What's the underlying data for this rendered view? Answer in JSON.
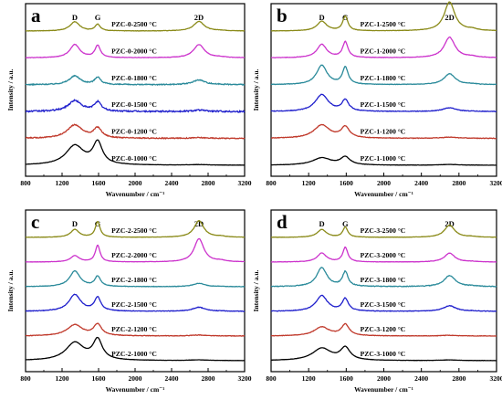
{
  "chart_data": [
    {
      "type": "line",
      "panel_letter": "a",
      "xlabel": "Wavenumber / cm⁻¹",
      "ylabel": "Intensity / a.u.",
      "xlim": [
        800,
        3200
      ],
      "xticks": [
        800,
        1200,
        1600,
        2000,
        2400,
        2800,
        3200
      ],
      "peak_labels": [
        {
          "text": "D",
          "x": 1340
        },
        {
          "text": "G",
          "x": 1590
        },
        {
          "text": "2D",
          "x": 2700
        }
      ],
      "series": [
        {
          "name": "PZC-0-2500 °C",
          "color": "#8a8a18",
          "D": 0.38,
          "G": 0.27,
          "DD": 0.4,
          "width": 0.75,
          "noise": 0.008
        },
        {
          "name": "PZC-0-2000 °C",
          "color": "#cc33cc",
          "D": 0.55,
          "G": 0.5,
          "DD": 0.55,
          "width": 0.8,
          "noise": 0.008
        },
        {
          "name": "PZC-0-1800 °C",
          "color": "#2a8a9a",
          "D": 0.36,
          "G": 0.3,
          "DD": 0.2,
          "width": 1.0,
          "noise": 0.02
        },
        {
          "name": "PZC-0-1500 °C",
          "color": "#1f1fcc",
          "D": 0.45,
          "G": 0.38,
          "DD": 0.06,
          "width": 1.3,
          "noise": 0.03
        },
        {
          "name": "PZC-0-1200 °C",
          "color": "#c0392b",
          "D": 0.55,
          "G": 0.4,
          "DD": 0.03,
          "width": 1.6,
          "noise": 0.02
        },
        {
          "name": "PZC-0-1000 °C",
          "color": "#000000",
          "D": 0.8,
          "G": 0.9,
          "DD": 0.02,
          "width": 2.0,
          "noise": 0.005
        }
      ]
    },
    {
      "type": "line",
      "panel_letter": "b",
      "xlabel": "Wavenumber / cm⁻¹",
      "ylabel": "Intensity / a.u.",
      "xlim": [
        800,
        3200
      ],
      "xticks": [
        800,
        1200,
        1600,
        2000,
        2400,
        2800,
        3200
      ],
      "peak_labels": [
        {
          "text": "D",
          "x": 1340
        },
        {
          "text": "G",
          "x": 1590
        },
        {
          "text": "2D",
          "x": 2700
        }
      ],
      "series": [
        {
          "name": "PZC-1-2500 °C",
          "color": "#8a8a18",
          "D": 0.4,
          "G": 0.6,
          "DD": 1.2,
          "width": 0.7,
          "noise": 0.006
        },
        {
          "name": "PZC-1-2000 °C",
          "color": "#cc33cc",
          "D": 0.55,
          "G": 0.65,
          "DD": 0.85,
          "width": 0.75,
          "noise": 0.008
        },
        {
          "name": "PZC-1-1800 °C",
          "color": "#2a8a9a",
          "D": 0.8,
          "G": 0.7,
          "DD": 0.45,
          "width": 0.85,
          "noise": 0.01
        },
        {
          "name": "PZC-1-1500 °C",
          "color": "#1f1fcc",
          "D": 0.7,
          "G": 0.45,
          "DD": 0.15,
          "width": 1.2,
          "noise": 0.012
        },
        {
          "name": "PZC-1-1200 °C",
          "color": "#c0392b",
          "D": 0.55,
          "G": 0.45,
          "DD": 0.05,
          "width": 1.6,
          "noise": 0.012
        },
        {
          "name": "PZC-1-1000 °C",
          "color": "#000000",
          "D": 0.3,
          "G": 0.32,
          "DD": 0.03,
          "width": 2.0,
          "noise": 0.005
        }
      ]
    },
    {
      "type": "line",
      "panel_letter": "c",
      "xlabel": "Wavenumber / cm⁻¹",
      "ylabel": "Intensity / a.u.",
      "xlim": [
        800,
        3200
      ],
      "xticks": [
        800,
        1200,
        1600,
        2000,
        2400,
        2800,
        3200
      ],
      "peak_labels": [
        {
          "text": "D",
          "x": 1340
        },
        {
          "text": "G",
          "x": 1590
        },
        {
          "text": "2D",
          "x": 2700
        }
      ],
      "series": [
        {
          "name": "PZC-2-2500 °C",
          "color": "#8a8a18",
          "D": 0.35,
          "G": 0.7,
          "DD": 0.75,
          "width": 0.6,
          "noise": 0.006
        },
        {
          "name": "PZC-2-2000 °C",
          "color": "#cc33cc",
          "D": 0.28,
          "G": 0.75,
          "DD": 1.05,
          "width": 0.6,
          "noise": 0.006
        },
        {
          "name": "PZC-2-1800 °C",
          "color": "#2a8a9a",
          "D": 0.7,
          "G": 0.45,
          "DD": 0.15,
          "width": 0.9,
          "noise": 0.01
        },
        {
          "name": "PZC-2-1500 °C",
          "color": "#1f1fcc",
          "D": 0.75,
          "G": 0.6,
          "DD": 0.18,
          "width": 1.1,
          "noise": 0.012
        },
        {
          "name": "PZC-2-1200 °C",
          "color": "#c0392b",
          "D": 0.5,
          "G": 0.5,
          "DD": 0.04,
          "width": 1.6,
          "noise": 0.012
        },
        {
          "name": "PZC-2-1000 °C",
          "color": "#000000",
          "D": 0.8,
          "G": 0.9,
          "DD": 0.03,
          "width": 2.0,
          "noise": 0.005
        }
      ]
    },
    {
      "type": "line",
      "panel_letter": "d",
      "xlabel": "Wavenumber / cm⁻¹",
      "ylabel": "Intensity / a.u.",
      "xlim": [
        800,
        3200
      ],
      "xticks": [
        800,
        1200,
        1600,
        2000,
        2400,
        2800,
        3200
      ],
      "peak_labels": [
        {
          "text": "D",
          "x": 1340
        },
        {
          "text": "G",
          "x": 1590
        },
        {
          "text": "2D",
          "x": 2700
        }
      ],
      "series": [
        {
          "name": "PZC-3-2500 °C",
          "color": "#8a8a18",
          "D": 0.35,
          "G": 0.45,
          "DD": 0.55,
          "width": 0.65,
          "noise": 0.006
        },
        {
          "name": "PZC-3-2000 °C",
          "color": "#cc33cc",
          "D": 0.4,
          "G": 0.65,
          "DD": 0.4,
          "width": 0.65,
          "noise": 0.008
        },
        {
          "name": "PZC-3-1800 °C",
          "color": "#2a8a9a",
          "D": 0.85,
          "G": 0.65,
          "DD": 0.5,
          "width": 0.8,
          "noise": 0.015
        },
        {
          "name": "PZC-3-1500 °C",
          "color": "#1f1fcc",
          "D": 0.7,
          "G": 0.55,
          "DD": 0.25,
          "width": 1.0,
          "noise": 0.012
        },
        {
          "name": "PZC-3-1200 °C",
          "color": "#c0392b",
          "D": 0.4,
          "G": 0.5,
          "DD": 0.03,
          "width": 1.5,
          "noise": 0.01
        },
        {
          "name": "PZC-3-1000 °C",
          "color": "#000000",
          "D": 0.55,
          "G": 0.55,
          "DD": 0.03,
          "width": 2.0,
          "noise": 0.005
        }
      ]
    }
  ]
}
